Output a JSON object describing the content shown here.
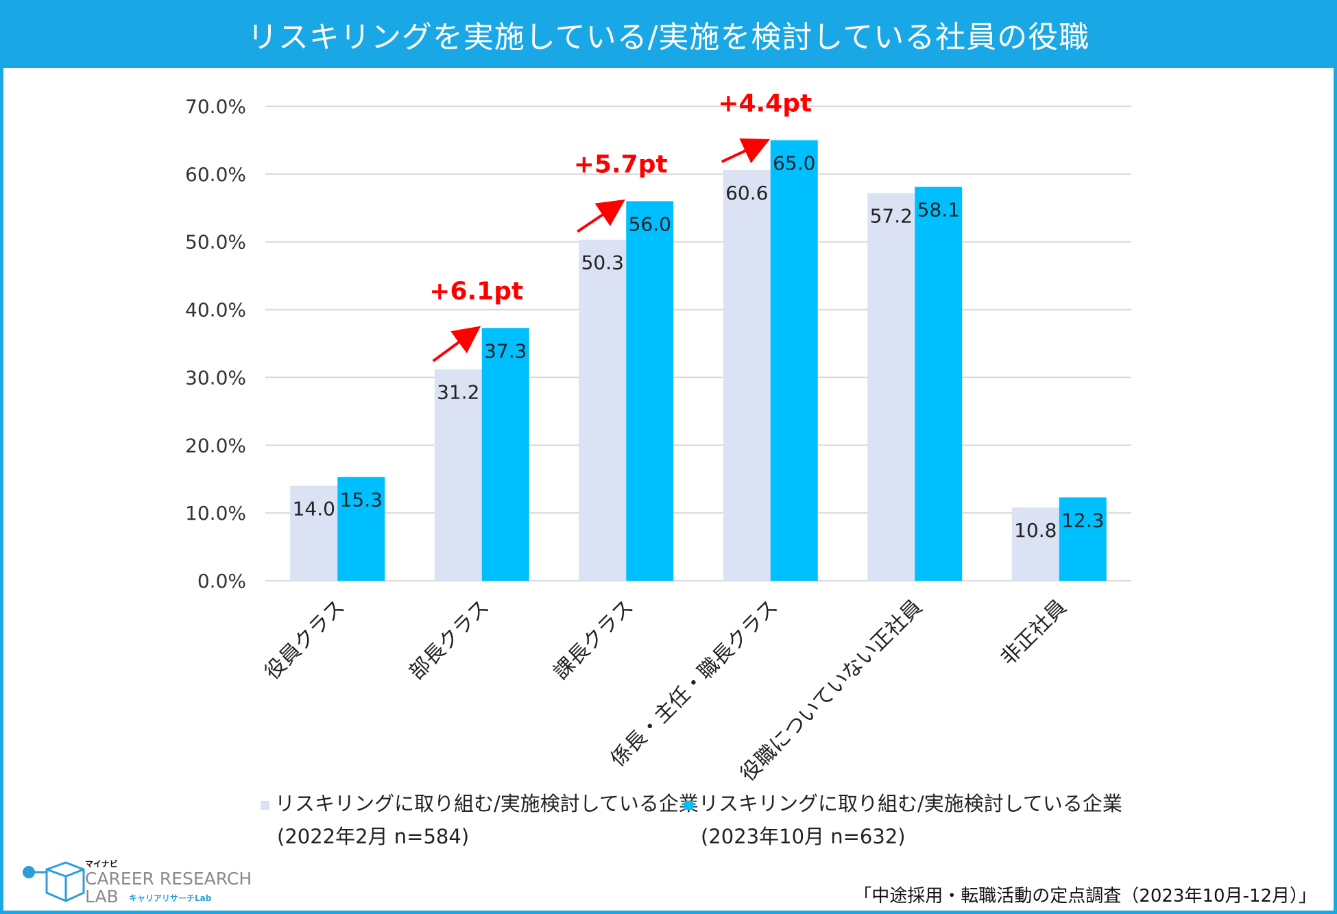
{
  "title": "リスキリングを実施している/実施を検討している社員の役職",
  "chart_data": {
    "type": "bar",
    "title": "リスキリングを実施している/実施を検討している社員の役職",
    "categories": [
      "役員クラス",
      "部長クラス",
      "課長クラス",
      "係長・主任・職長クラス",
      "役職についていない正社員",
      "非正社員"
    ],
    "series": [
      {
        "name": "リスキリングに取り組む/実施検討している企業",
        "period": "(2022年2月 n=584)",
        "values": [
          14.0,
          31.2,
          50.3,
          60.6,
          57.2,
          10.8
        ],
        "color": "#dae2f3"
      },
      {
        "name": "リスキリングに取り組む/実施検討している企業",
        "period": "(2023年10月 n=632)",
        "values": [
          15.3,
          37.3,
          56.0,
          65.0,
          58.1,
          12.3
        ],
        "color": "#00bfff"
      }
    ],
    "ylim": [
      0,
      70
    ],
    "yticks": [
      0,
      10,
      20,
      30,
      40,
      50,
      60,
      70
    ],
    "ytick_labels": [
      "0.0%",
      "10.0%",
      "20.0%",
      "30.0%",
      "40.0%",
      "50.0%",
      "60.0%",
      "70.0%"
    ],
    "xlabel": "",
    "ylabel": "",
    "grid": true,
    "legend_position": "bottom",
    "annotations": [
      {
        "category_index": 1,
        "text": "+6.1pt"
      },
      {
        "category_index": 2,
        "text": "+5.7pt"
      },
      {
        "category_index": 3,
        "text": "+4.4pt"
      }
    ]
  },
  "colors": {
    "title_bar": "#1aa7e6",
    "annotation": "#ff0000",
    "grid": "#d9d9d9"
  },
  "logo": {
    "brand_small": "マイナビ",
    "line1": "CAREER RESEARCH",
    "line2": "LAB",
    "sub": "キャリアリサーチLab"
  },
  "source": "「中途採用・転職活動の定点調査（2023年10月-12月）」"
}
